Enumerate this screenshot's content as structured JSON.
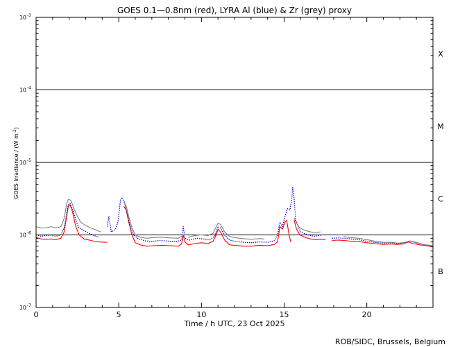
{
  "chart_data": {
    "type": "line",
    "title": "GOES 0.1—0.8nm (red), LYRA Al (blue) & Zr (grey) proxy",
    "xlabel": "Time / h UTC, 23 Oct 2025",
    "ylabel": "GOES Irradiance / (W m",
    "ylabel_sup": "-2",
    "ylabel_close": ")",
    "credit": "ROB/SIDC, Brussels, Belgium",
    "x_range": [
      0,
      24
    ],
    "y_range": [
      1e-07,
      0.001
    ],
    "y_scale": "log",
    "x_ticks": [
      {
        "value": 0,
        "label": "0"
      },
      {
        "value": 5,
        "label": "5"
      },
      {
        "value": 10,
        "label": "10"
      },
      {
        "value": 15,
        "label": "15"
      },
      {
        "value": 20,
        "label": "20"
      }
    ],
    "y_ticks": [
      {
        "exp": -3,
        "base": "10",
        "sup": "-3"
      },
      {
        "exp": -4,
        "base": "10",
        "sup": "-4"
      },
      {
        "exp": -5,
        "base": "10",
        "sup": "-5"
      },
      {
        "exp": -6,
        "base": "10",
        "sup": "-6"
      },
      {
        "exp": -7,
        "base": "10",
        "sup": "-7"
      }
    ],
    "class_lines": [
      0.0001,
      1e-05,
      1e-06
    ],
    "flare_classes": [
      {
        "label": "X",
        "exp": -3.5
      },
      {
        "label": "M",
        "exp": -4.5
      },
      {
        "label": "C",
        "exp": -5.5
      },
      {
        "label": "B",
        "exp": -6.5
      }
    ],
    "series": [
      {
        "name": "GOES 0.1-0.8nm",
        "color": "#ff0000",
        "style": "solid",
        "points": [
          [
            0,
            9.2e-07
          ],
          [
            0.3,
            8.8e-07
          ],
          [
            0.6,
            8.7e-07
          ],
          [
            0.9,
            8.8e-07
          ],
          [
            1.2,
            8.6e-07
          ],
          [
            1.5,
            9e-07
          ],
          [
            1.7,
            1.1e-06
          ],
          [
            1.85,
            1.8e-06
          ],
          [
            1.95,
            2.5e-06
          ],
          [
            2.05,
            2.6e-06
          ],
          [
            2.2,
            2.1e-06
          ],
          [
            2.4,
            1.3e-06
          ],
          [
            2.6,
            1e-06
          ],
          [
            2.9,
            8.8e-07
          ],
          [
            3.2,
            8.5e-07
          ],
          [
            3.5,
            8.2e-07
          ],
          [
            3.8,
            8e-07
          ],
          [
            4.3,
            7.9e-07
          ]
        ]
      },
      {
        "name": "GOES 0.1-0.8nm",
        "color": "#ff0000",
        "style": "solid",
        "points": [
          [
            5.3,
            2.5e-06
          ],
          [
            5.45,
            2.2e-06
          ],
          [
            5.6,
            1.5e-06
          ],
          [
            5.8,
            1e-06
          ],
          [
            6.0,
            7.8e-07
          ],
          [
            6.3,
            7.3e-07
          ],
          [
            6.7,
            7e-07
          ],
          [
            7.1,
            7.1e-07
          ],
          [
            7.6,
            7.2e-07
          ],
          [
            8.1,
            7.1e-07
          ],
          [
            8.6,
            7e-07
          ],
          [
            8.8,
            7.5e-07
          ],
          [
            8.9,
            1e-06
          ],
          [
            9.0,
            8e-07
          ],
          [
            9.2,
            7.3e-07
          ],
          [
            9.6,
            7.6e-07
          ],
          [
            10.0,
            7.8e-07
          ],
          [
            10.4,
            7.6e-07
          ],
          [
            10.7,
            8.2e-07
          ],
          [
            10.9,
            1e-06
          ],
          [
            11.0,
            1.2e-06
          ],
          [
            11.15,
            1.1e-06
          ],
          [
            11.4,
            8.5e-07
          ],
          [
            11.7,
            7.3e-07
          ],
          [
            12.0,
            7.2e-07
          ],
          [
            12.5,
            7e-07
          ],
          [
            13.0,
            7e-07
          ],
          [
            13.5,
            7.2e-07
          ],
          [
            14.0,
            7.1e-07
          ],
          [
            14.4,
            7.4e-07
          ],
          [
            14.6,
            8e-07
          ],
          [
            14.75,
            1.3e-06
          ],
          [
            14.9,
            1.2e-06
          ],
          [
            15.05,
            1.5e-06
          ],
          [
            15.15,
            1.6e-06
          ],
          [
            15.3,
            1e-06
          ],
          [
            15.4,
            8e-07
          ]
        ]
      },
      {
        "name": "GOES 0.1-0.8nm",
        "color": "#ff0000",
        "style": "solid",
        "points": [
          [
            15.6,
            1.6e-06
          ],
          [
            15.75,
            1.2e-06
          ],
          [
            15.95,
            1e-06
          ],
          [
            16.3,
            9.2e-07
          ],
          [
            16.6,
            8.8e-07
          ],
          [
            16.9,
            8.6e-07
          ],
          [
            17.2,
            8.7e-07
          ],
          [
            17.5,
            8.6e-07
          ]
        ]
      },
      {
        "name": "GOES 0.1-0.8nm",
        "color": "#ff0000",
        "style": "solid",
        "points": [
          [
            17.9,
            8.4e-07
          ],
          [
            18.3,
            8.5e-07
          ],
          [
            18.6,
            8.4e-07
          ],
          [
            19.0,
            8.2e-07
          ],
          [
            19.5,
            8.1e-07
          ],
          [
            20.0,
            7.8e-07
          ],
          [
            20.5,
            7.6e-07
          ],
          [
            21.0,
            7.4e-07
          ],
          [
            21.5,
            7.5e-07
          ],
          [
            21.8,
            7.4e-07
          ],
          [
            22.2,
            7.5e-07
          ],
          [
            22.5,
            8e-07
          ],
          [
            22.8,
            7.6e-07
          ],
          [
            23.2,
            7.3e-07
          ],
          [
            23.6,
            7.1e-07
          ],
          [
            24.0,
            6.8e-07
          ]
        ]
      },
      {
        "name": "LYRA Al",
        "color": "#0000cc",
        "style": "dotted",
        "points": [
          [
            0,
            1e-06
          ],
          [
            0.3,
            9.6e-07
          ],
          [
            0.6,
            9.8e-07
          ],
          [
            0.9,
            9.9e-07
          ],
          [
            1.2,
            9.6e-07
          ],
          [
            1.5,
            1e-06
          ],
          [
            1.7,
            1.25e-06
          ],
          [
            1.85,
            2e-06
          ],
          [
            1.95,
            2.6e-06
          ],
          [
            2.05,
            2.7e-06
          ],
          [
            2.2,
            2.3e-06
          ],
          [
            2.4,
            1.6e-06
          ],
          [
            2.6,
            1.25e-06
          ],
          [
            2.9,
            1.15e-06
          ],
          [
            3.2,
            1.05e-06
          ],
          [
            3.5,
            9.8e-07
          ],
          [
            3.8,
            9.3e-07
          ]
        ]
      },
      {
        "name": "LYRA Al",
        "color": "#0000cc",
        "style": "dotted",
        "points": [
          [
            4.3,
            1.3e-06
          ],
          [
            4.4,
            1.8e-06
          ],
          [
            4.55,
            1.1e-06
          ],
          [
            4.8,
            1.2e-06
          ],
          [
            4.95,
            1.5e-06
          ],
          [
            5.1,
            3e-06
          ],
          [
            5.2,
            3.3e-06
          ],
          [
            5.35,
            2.8e-06
          ],
          [
            5.5,
            2e-06
          ],
          [
            5.7,
            1.3e-06
          ],
          [
            5.9,
            1e-06
          ],
          [
            6.2,
            8.8e-07
          ],
          [
            6.6,
            8.3e-07
          ],
          [
            7.0,
            8.1e-07
          ],
          [
            7.5,
            8.4e-07
          ],
          [
            8.0,
            8.2e-07
          ],
          [
            8.5,
            8.1e-07
          ],
          [
            8.8,
            8.5e-07
          ],
          [
            8.9,
            1.3e-06
          ],
          [
            9.0,
            9e-07
          ],
          [
            9.3,
            8.5e-07
          ],
          [
            9.7,
            9e-07
          ],
          [
            10.1,
            8.8e-07
          ],
          [
            10.5,
            8.6e-07
          ],
          [
            10.8,
            9.5e-07
          ],
          [
            11.0,
            1.3e-06
          ],
          [
            11.15,
            1.25e-06
          ],
          [
            11.4,
            1e-06
          ],
          [
            11.7,
            8.5e-07
          ],
          [
            12.0,
            8.2e-07
          ],
          [
            12.5,
            7.9e-07
          ],
          [
            13.0,
            7.8e-07
          ],
          [
            13.5,
            8e-07
          ],
          [
            14.0,
            7.9e-07
          ],
          [
            14.4,
            8.3e-07
          ],
          [
            14.6,
            1e-06
          ],
          [
            14.75,
            1.5e-06
          ],
          [
            14.9,
            1.3e-06
          ],
          [
            15.05,
            1.8e-06
          ],
          [
            15.2,
            2.3e-06
          ],
          [
            15.35,
            2.2e-06
          ],
          [
            15.45,
            3e-06
          ],
          [
            15.52,
            4.5e-06
          ],
          [
            15.58,
            3.6e-06
          ],
          [
            15.7,
            1.6e-06
          ],
          [
            15.85,
            1.3e-06
          ],
          [
            16.0,
            1.1e-06
          ],
          [
            16.4,
            1e-06
          ],
          [
            16.8,
            9.6e-07
          ],
          [
            17.2,
            9.8e-07
          ]
        ]
      },
      {
        "name": "LYRA Al",
        "color": "#0000cc",
        "style": "dotted",
        "points": [
          [
            17.9,
            9e-07
          ],
          [
            18.3,
            9.1e-07
          ],
          [
            18.6,
            9e-07
          ],
          [
            19.0,
            8.8e-07
          ],
          [
            19.5,
            8.6e-07
          ],
          [
            20.0,
            8.2e-07
          ],
          [
            20.5,
            7.9e-07
          ],
          [
            21.0,
            7.7e-07
          ],
          [
            21.5,
            7.8e-07
          ],
          [
            21.9,
            7.6e-07
          ],
          [
            22.3,
            7.8e-07
          ],
          [
            22.6,
            8.2e-07
          ],
          [
            23.0,
            7.8e-07
          ],
          [
            23.4,
            7.4e-07
          ],
          [
            23.8,
            7.1e-07
          ],
          [
            24.0,
            7e-07
          ]
        ]
      },
      {
        "name": "LYRA Zr",
        "color": "#808080",
        "style": "solid",
        "points": [
          [
            0,
            1.3e-06
          ],
          [
            0.3,
            1.25e-06
          ],
          [
            0.6,
            1.25e-06
          ],
          [
            0.9,
            1.3e-06
          ],
          [
            1.2,
            1.25e-06
          ],
          [
            1.5,
            1.3e-06
          ],
          [
            1.7,
            1.7e-06
          ],
          [
            1.85,
            2.7e-06
          ],
          [
            1.95,
            3.1e-06
          ],
          [
            2.1,
            3e-06
          ],
          [
            2.3,
            2.3e-06
          ],
          [
            2.5,
            1.8e-06
          ],
          [
            2.7,
            1.5e-06
          ],
          [
            3.0,
            1.35e-06
          ],
          [
            3.3,
            1.25e-06
          ],
          [
            3.6,
            1.18e-06
          ],
          [
            3.9,
            1.1e-06
          ]
        ]
      },
      {
        "name": "LYRA Zr",
        "color": "#808080",
        "style": "solid",
        "points": [
          [
            5.3,
            2.9e-06
          ],
          [
            5.45,
            2.5e-06
          ],
          [
            5.6,
            1.8e-06
          ],
          [
            5.8,
            1.25e-06
          ],
          [
            6.0,
            1e-06
          ],
          [
            6.3,
            9.3e-07
          ],
          [
            6.7,
            9e-07
          ],
          [
            7.1,
            9.2e-07
          ],
          [
            7.6,
            9.3e-07
          ],
          [
            8.1,
            9.1e-07
          ],
          [
            8.6,
            9e-07
          ],
          [
            8.8,
            9.6e-07
          ]
        ]
      },
      {
        "name": "LYRA Zr",
        "color": "#808080",
        "style": "solid",
        "points": [
          [
            9.2,
            9.3e-07
          ],
          [
            9.6,
            9.8e-07
          ],
          [
            10.0,
            1e-06
          ],
          [
            10.4,
            9.8e-07
          ],
          [
            10.7,
            1.05e-06
          ],
          [
            10.9,
            1.3e-06
          ],
          [
            11.0,
            1.45e-06
          ],
          [
            11.15,
            1.4e-06
          ],
          [
            11.4,
            1.1e-06
          ],
          [
            11.7,
            9.5e-07
          ],
          [
            12.0,
            9.2e-07
          ],
          [
            12.5,
            8.9e-07
          ],
          [
            13.0,
            8.7e-07
          ],
          [
            13.5,
            8.9e-07
          ],
          [
            13.8,
            8.8e-07
          ]
        ]
      },
      {
        "name": "LYRA Zr",
        "color": "#808080",
        "style": "solid",
        "points": [
          [
            15.6,
            1.7e-06
          ],
          [
            15.75,
            1.45e-06
          ],
          [
            15.95,
            1.25e-06
          ],
          [
            16.3,
            1.15e-06
          ],
          [
            16.6,
            1.1e-06
          ],
          [
            16.9,
            1.08e-06
          ],
          [
            17.2,
            1.1e-06
          ]
        ]
      },
      {
        "name": "LYRA Zr",
        "color": "#808080",
        "style": "solid",
        "points": [
          [
            18.6,
            9.5e-07
          ],
          [
            19.0,
            9.2e-07
          ],
          [
            19.5,
            9e-07
          ],
          [
            20.0,
            8.6e-07
          ],
          [
            20.5,
            8.2e-07
          ],
          [
            21.0,
            7.9e-07
          ],
          [
            21.5,
            7.9e-07
          ],
          [
            21.9,
            7.7e-07
          ],
          [
            22.3,
            7.9e-07
          ],
          [
            22.6,
            8.3e-07
          ],
          [
            23.0,
            7.9e-07
          ],
          [
            23.4,
            7.4e-07
          ],
          [
            23.8,
            7.2e-07
          ],
          [
            24.0,
            7e-07
          ]
        ]
      }
    ]
  }
}
